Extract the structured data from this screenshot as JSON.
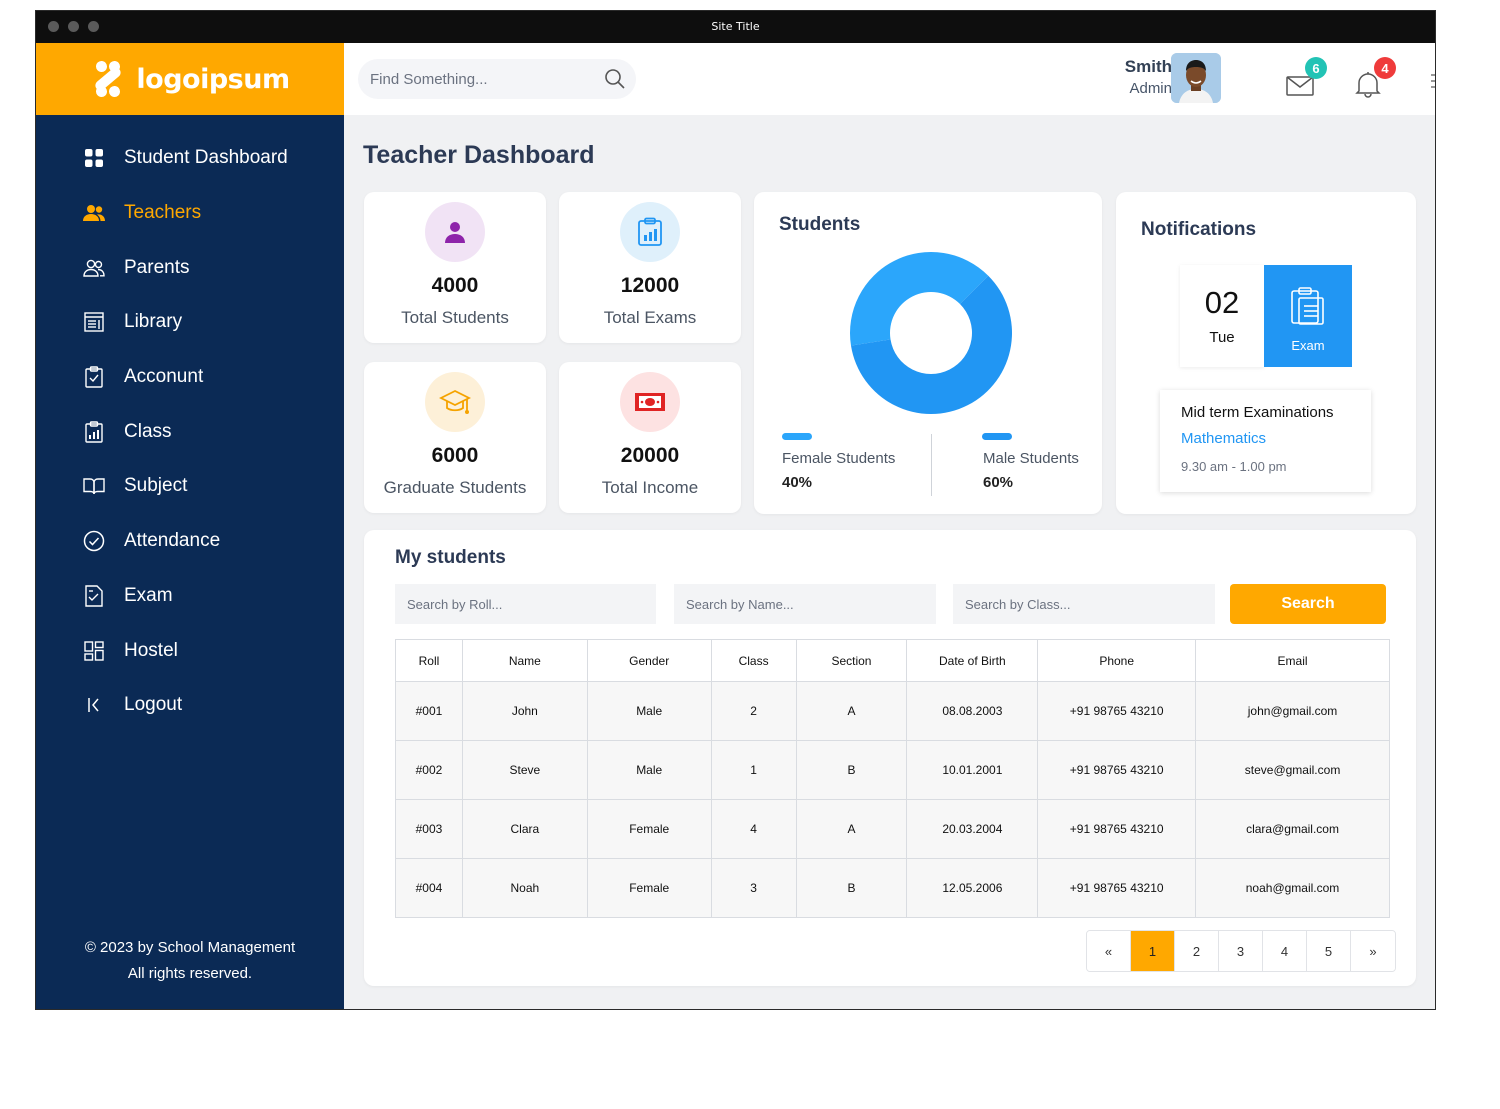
{
  "window": {
    "title": "Site Title"
  },
  "brand": {
    "name": "logoipsum"
  },
  "sidebar": {
    "items": [
      {
        "label": "Student Dashboard",
        "icon": "grid-icon"
      },
      {
        "label": "Teachers",
        "icon": "users-icon",
        "active": true
      },
      {
        "label": "Parents",
        "icon": "parents-icon"
      },
      {
        "label": "Library",
        "icon": "library-icon"
      },
      {
        "label": "Acconunt",
        "icon": "clipboard-check-icon"
      },
      {
        "label": "Class",
        "icon": "class-icon"
      },
      {
        "label": "Subject",
        "icon": "book-icon"
      },
      {
        "label": "Attendance",
        "icon": "check-circle-icon"
      },
      {
        "label": "Exam",
        "icon": "exam-icon"
      },
      {
        "label": "Hostel",
        "icon": "hostel-icon"
      },
      {
        "label": "Logout",
        "icon": "logout-icon"
      }
    ],
    "footer_line1": "© 2023 by School Management",
    "footer_line2": "All rights reserved."
  },
  "header": {
    "search_placeholder": "Find Something...",
    "user_name": "Smith",
    "user_role": "Admin",
    "mail_count": "6",
    "notification_count": "4"
  },
  "page": {
    "title": "Teacher Dashboard"
  },
  "stats": [
    {
      "value": "4000",
      "label": "Total Students",
      "icon": "student-icon"
    },
    {
      "value": "12000",
      "label": "Total Exams",
      "icon": "clipboard-chart-icon"
    },
    {
      "value": "6000",
      "label": "Graduate Students",
      "icon": "graduation-cap-icon"
    },
    {
      "value": "20000",
      "label": "Total Income",
      "icon": "money-icon"
    }
  ],
  "students_chart": {
    "title": "Students",
    "female_label": "Female Students",
    "female_value": "40%",
    "male_label": "Male Students",
    "male_value": "60%"
  },
  "chart_data": {
    "type": "pie",
    "title": "Students",
    "categories": [
      "Female Students",
      "Male Students"
    ],
    "values": [
      40,
      60
    ],
    "colors": [
      "#2ba6fb",
      "#2196f3"
    ]
  },
  "notifications": {
    "title": "Notifications",
    "day_number": "02",
    "day_name": "Tue",
    "tag": "Exam",
    "event_title": "Mid term Examinations",
    "event_subject": "Mathematics",
    "event_time": "9.30 am - 1.00 pm"
  },
  "my_students": {
    "title": "My students",
    "roll_placeholder": "Search by Roll...",
    "name_placeholder": "Search by Name...",
    "class_placeholder": "Search by Class...",
    "search_label": "Search",
    "columns": [
      "Roll",
      "Name",
      "Gender",
      "Class",
      "Section",
      "Date of Birth",
      "Phone",
      "Email"
    ],
    "rows": [
      [
        "#001",
        "John",
        "Male",
        "2",
        "A",
        "08.08.2003",
        "+91 98765 43210",
        "john@gmail.com"
      ],
      [
        "#002",
        "Steve",
        "Male",
        "1",
        "B",
        "10.01.2001",
        "+91 98765 43210",
        "steve@gmail.com"
      ],
      [
        "#003",
        "Clara",
        "Female",
        "4",
        "A",
        "20.03.2004",
        "+91 98765 43210",
        "clara@gmail.com"
      ],
      [
        "#004",
        "Noah",
        "Female",
        "3",
        "B",
        "12.05.2006",
        "+91 98765 43210",
        "noah@gmail.com"
      ]
    ]
  },
  "pagination": {
    "prev": "«",
    "pages": [
      "1",
      "2",
      "3",
      "4",
      "5"
    ],
    "current": "1",
    "next": "»"
  },
  "colors": {
    "accent": "#ffa800",
    "sidebar": "#0b2a55",
    "blue": "#2196f3",
    "badge_mail": "#22c3b5",
    "badge_bell": "#ef3b3b"
  }
}
